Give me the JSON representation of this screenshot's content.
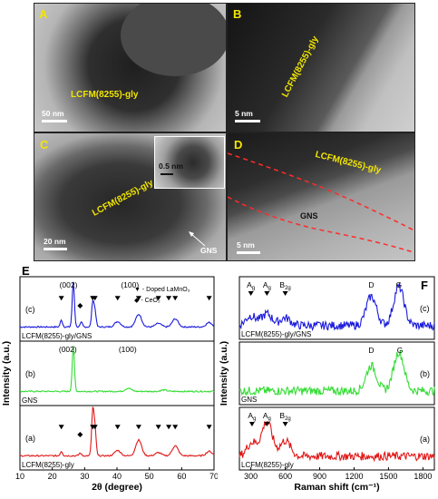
{
  "tem": {
    "A": {
      "letter": "A",
      "sample": "LCFM(8255)-gly",
      "scale": "50 nm"
    },
    "B": {
      "letter": "B",
      "sample": "LCFM(8255)-gly",
      "scale": "5 nm"
    },
    "C": {
      "letter": "C",
      "sample": "LCFM(8255)-gly",
      "scale": "20 nm",
      "inset_scale": "0.5 nm",
      "gns_label": "GNS"
    },
    "D": {
      "letter": "D",
      "sample": "LCFM(8255)-gly",
      "scale": "5 nm",
      "gns_label": "GNS"
    }
  },
  "chart_data": [
    {
      "type": "line",
      "panel": "E",
      "xlabel": "2θ (degree)",
      "ylabel": "Intensity (a.u.)",
      "xlim": [
        10,
        70
      ],
      "xticks": [
        10,
        20,
        30,
        40,
        50,
        60,
        70
      ],
      "legend": {
        "doped": "▼ - Doped LaMnO₃",
        "ceo2": "◆ - CeO₂"
      },
      "series": [
        {
          "tag": "(c)",
          "label": "LCFM(8255)-gly/GNS",
          "color": "#1a1adb",
          "peaks": [
            [
              22.8,
              0.15
            ],
            [
              26.5,
              1.0
            ],
            [
              29.0,
              0.1
            ],
            [
              32.5,
              0.55
            ],
            [
              33.2,
              0.35
            ],
            [
              40.2,
              0.12
            ],
            [
              46.7,
              0.28
            ],
            [
              52.8,
              0.08
            ],
            [
              58.0,
              0.18
            ],
            [
              68.5,
              0.1
            ]
          ],
          "annotations": [
            {
              "text": "(002)",
              "x": 25.0
            },
            {
              "text": "(100)",
              "x": 44.0
            }
          ],
          "doped_markers": [
            22.8,
            32.5,
            33.2,
            40.2,
            46.7,
            52.8,
            56.0,
            58.0,
            68.5
          ],
          "ceo2_markers": [
            28.6
          ]
        },
        {
          "tag": "(b)",
          "label": "GNS",
          "color": "#33dd33",
          "peaks": [
            [
              26.5,
              1.0
            ],
            [
              43.5,
              0.07
            ],
            [
              54.5,
              0.03
            ]
          ],
          "annotations": [
            {
              "text": "(002)",
              "x": 24.8
            },
            {
              "text": "(100)",
              "x": 43.3
            }
          ]
        },
        {
          "tag": "(a)",
          "label": "LCFM(8255)-gly",
          "color": "#e01818",
          "peaks": [
            [
              22.8,
              0.1
            ],
            [
              28.6,
              0.06
            ],
            [
              32.5,
              1.0
            ],
            [
              33.2,
              0.6
            ],
            [
              40.2,
              0.12
            ],
            [
              46.7,
              0.35
            ],
            [
              52.8,
              0.07
            ],
            [
              58.0,
              0.22
            ],
            [
              68.5,
              0.1
            ]
          ],
          "doped_markers": [
            22.8,
            32.5,
            33.2,
            40.2,
            46.7,
            52.8,
            56.0,
            58.0,
            68.5
          ],
          "ceo2_markers": [
            28.6
          ]
        }
      ]
    },
    {
      "type": "line",
      "panel": "F",
      "xlabel": "Raman shift (cm⁻¹)",
      "ylabel": "Intensity (a.u.)",
      "xlim": [
        200,
        1900
      ],
      "xticks": [
        300,
        600,
        900,
        1200,
        1500,
        1800
      ],
      "series": [
        {
          "tag": "(c)",
          "label": "LCFM(8255)-gly/GNS",
          "color": "#1a1adb",
          "peaks": [
            [
              300,
              0.25
            ],
            [
              440,
              0.3
            ],
            [
              600,
              0.2
            ],
            [
              1350,
              0.75
            ],
            [
              1590,
              1.0
            ]
          ],
          "annotations": [
            {
              "text": "Ag",
              "x": 300
            },
            {
              "text": "Ag",
              "x": 440
            },
            {
              "text": "B2g",
              "x": 600
            },
            {
              "text": "D",
              "x": 1350
            },
            {
              "text": "G",
              "x": 1590
            }
          ]
        },
        {
          "tag": "(b)",
          "label": "GNS",
          "color": "#33dd33",
          "peaks": [
            [
              1350,
              0.65
            ],
            [
              1590,
              1.0
            ]
          ],
          "annotations": [
            {
              "text": "D",
              "x": 1350
            },
            {
              "text": "G",
              "x": 1600
            }
          ]
        },
        {
          "tag": "(a)",
          "label": "LCFM(8255)-gly",
          "color": "#e01818",
          "peaks": [
            [
              310,
              0.35
            ],
            [
              440,
              0.9
            ],
            [
              600,
              0.4
            ]
          ],
          "annotations": [
            {
              "text": "Ag",
              "x": 310
            },
            {
              "text": "Ag",
              "x": 440
            },
            {
              "text": "B2g",
              "x": 600
            }
          ]
        }
      ]
    }
  ]
}
